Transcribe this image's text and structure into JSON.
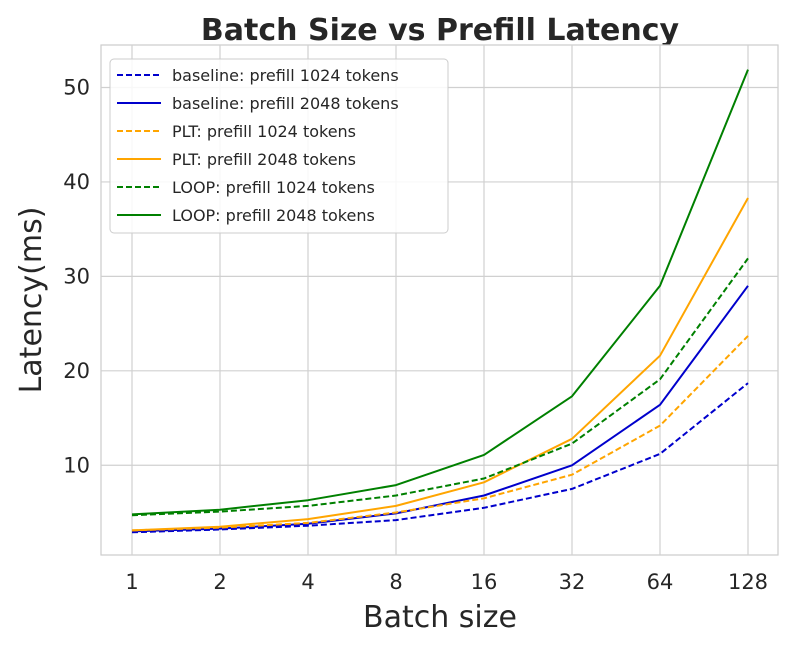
{
  "chart_data": {
    "type": "line",
    "title": "Batch Size vs Prefill Latency",
    "xlabel": "Batch size",
    "ylabel": "Latency(ms)",
    "categories": [
      "1",
      "2",
      "4",
      "8",
      "16",
      "32",
      "64",
      "128"
    ],
    "ylim": [
      0.5,
      54.5
    ],
    "yticks": [
      10,
      20,
      30,
      40,
      50
    ],
    "grid": true,
    "legend_position": "top-left",
    "series": [
      {
        "name": "baseline: prefill 1024 tokens",
        "color": "#0000cc",
        "dash": "dashed",
        "values": [
          2.9,
          3.2,
          3.6,
          4.2,
          5.5,
          7.5,
          11.2,
          18.7
        ]
      },
      {
        "name": "baseline: prefill 2048 tokens",
        "color": "#0000cc",
        "dash": "solid",
        "values": [
          3.0,
          3.3,
          3.8,
          4.9,
          6.8,
          10.0,
          16.4,
          29.0
        ]
      },
      {
        "name": "PLT: prefill 1024 tokens",
        "color": "#ffa500",
        "dash": "dashed",
        "values": [
          3.1,
          3.4,
          3.9,
          5.0,
          6.5,
          9.0,
          14.2,
          23.7
        ]
      },
      {
        "name": "PLT: prefill 2048 tokens",
        "color": "#ffa500",
        "dash": "solid",
        "values": [
          3.1,
          3.5,
          4.3,
          5.7,
          8.2,
          12.8,
          21.6,
          38.3
        ]
      },
      {
        "name": "LOOP: prefill 1024 tokens",
        "color": "#008000",
        "dash": "dashed",
        "values": [
          4.7,
          5.1,
          5.7,
          6.8,
          8.6,
          12.3,
          19.1,
          31.9
        ]
      },
      {
        "name": "LOOP: prefill 2048 tokens",
        "color": "#008000",
        "dash": "solid",
        "values": [
          4.8,
          5.3,
          6.3,
          7.9,
          11.1,
          17.3,
          29.0,
          51.9
        ]
      }
    ]
  }
}
